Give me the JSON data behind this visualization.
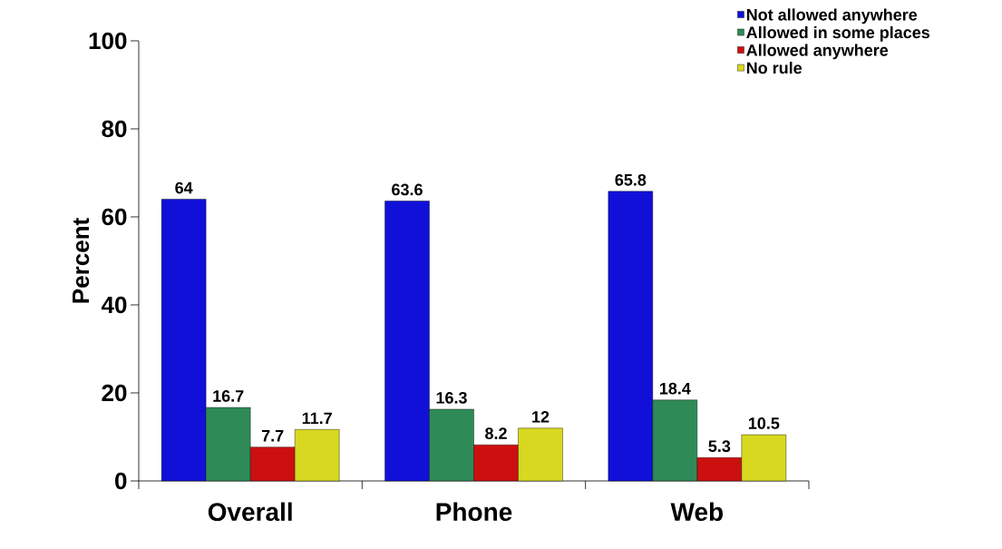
{
  "chart_data": {
    "type": "bar",
    "ylabel": "Percent",
    "categories": [
      "Overall",
      "Phone",
      "Web"
    ],
    "series": [
      {
        "name": "Not allowed anywhere",
        "color": "#1010d8",
        "values": [
          64,
          63.6,
          65.8
        ]
      },
      {
        "name": "Allowed in some places",
        "color": "#2e8b57",
        "values": [
          16.7,
          16.3,
          18.4
        ]
      },
      {
        "name": "Allowed anywhere",
        "color": "#cc1010",
        "values": [
          7.7,
          8.2,
          5.3
        ]
      },
      {
        "name": "No rule",
        "color": "#d8d820",
        "values": [
          11.7,
          12,
          10.5
        ]
      }
    ],
    "ylim": [
      0,
      100
    ],
    "yticks": [
      0,
      20,
      40,
      60,
      80,
      100
    ],
    "data_labels": true,
    "legend": "top right",
    "grid": false
  }
}
